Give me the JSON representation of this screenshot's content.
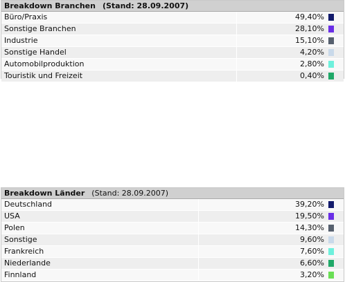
{
  "sections": [
    {
      "title": "Breakdown Branchen",
      "stand": "(Stand: 28.09.2007)",
      "stand_bold": true,
      "label_width": 340,
      "rows": [
        {
          "label": "Büro/Praxis",
          "value": "49,40%",
          "color": "#121a6b"
        },
        {
          "label": "Sonstige Branchen",
          "value": "28,10%",
          "color": "#6a2ee6"
        },
        {
          "label": "Industrie",
          "value": "15,10%",
          "color": "#56606e"
        },
        {
          "label": "Sonstige Handel",
          "value": "4,20%",
          "color": "#c9d9ea"
        },
        {
          "label": "Automobilproduktion",
          "value": "2,80%",
          "color": "#6ef0dc"
        },
        {
          "label": "Touristik und Freizeit",
          "value": "0,40%",
          "color": "#1fa868"
        }
      ]
    },
    {
      "title": "Breakdown Länder",
      "stand": "(Stand: 28.09.2007)",
      "stand_bold": false,
      "label_width": 285,
      "rows": [
        {
          "label": "Deutschland",
          "value": "39,20%",
          "color": "#121a6b"
        },
        {
          "label": "USA",
          "value": "19,50%",
          "color": "#6a2ee6"
        },
        {
          "label": "Polen",
          "value": "14,30%",
          "color": "#56606e"
        },
        {
          "label": "Sonstige",
          "value": "9,60%",
          "color": "#c9d9ea"
        },
        {
          "label": "Frankreich",
          "value": "7,60%",
          "color": "#6ef0dc"
        },
        {
          "label": "Niederlande",
          "value": "6,60%",
          "color": "#1fa868"
        },
        {
          "label": "Finnland",
          "value": "3,20%",
          "color": "#6ade55"
        }
      ]
    }
  ]
}
